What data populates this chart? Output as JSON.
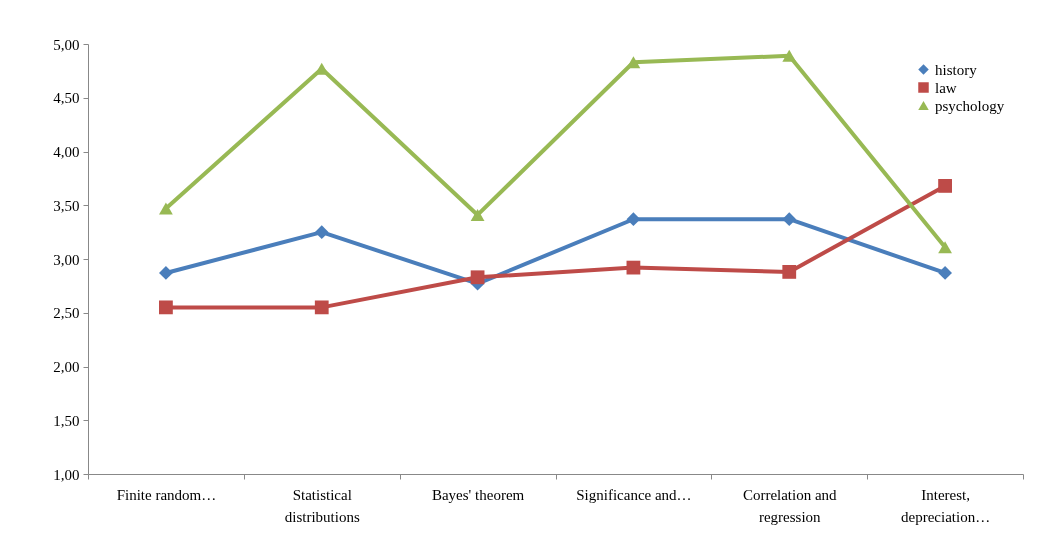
{
  "chart_data": {
    "type": "line",
    "categories": [
      "Finite random…",
      "Statistical distributions",
      "Bayes' theorem",
      "Significance and…",
      "Correlation and regression",
      "Interest, depreciation…"
    ],
    "series": [
      {
        "name": "history",
        "color": "#4a7ebb",
        "marker": "diamond",
        "values": [
          2.87,
          3.25,
          2.77,
          3.37,
          3.37,
          2.87
        ]
      },
      {
        "name": "law",
        "color": "#be4b48",
        "marker": "square",
        "values": [
          2.55,
          2.55,
          2.83,
          2.92,
          2.88,
          3.68
        ]
      },
      {
        "name": "psychology",
        "color": "#98b954",
        "marker": "triangle",
        "values": [
          3.47,
          4.77,
          3.41,
          4.83,
          4.89,
          3.11
        ]
      }
    ],
    "ylim": [
      1,
      5
    ],
    "yticks": [
      {
        "value": 1,
        "label": "1,00"
      },
      {
        "value": 1.5,
        "label": "1,50"
      },
      {
        "value": 2,
        "label": "2,00"
      },
      {
        "value": 2.5,
        "label": "2,50"
      },
      {
        "value": 3,
        "label": "3,00"
      },
      {
        "value": 3.5,
        "label": "3,50"
      },
      {
        "value": 4,
        "label": "4,00"
      },
      {
        "value": 4.5,
        "label": "4,50"
      },
      {
        "value": 5,
        "label": "5,00"
      }
    ],
    "grid": false,
    "legend": "top right",
    "line_style": "solid"
  }
}
